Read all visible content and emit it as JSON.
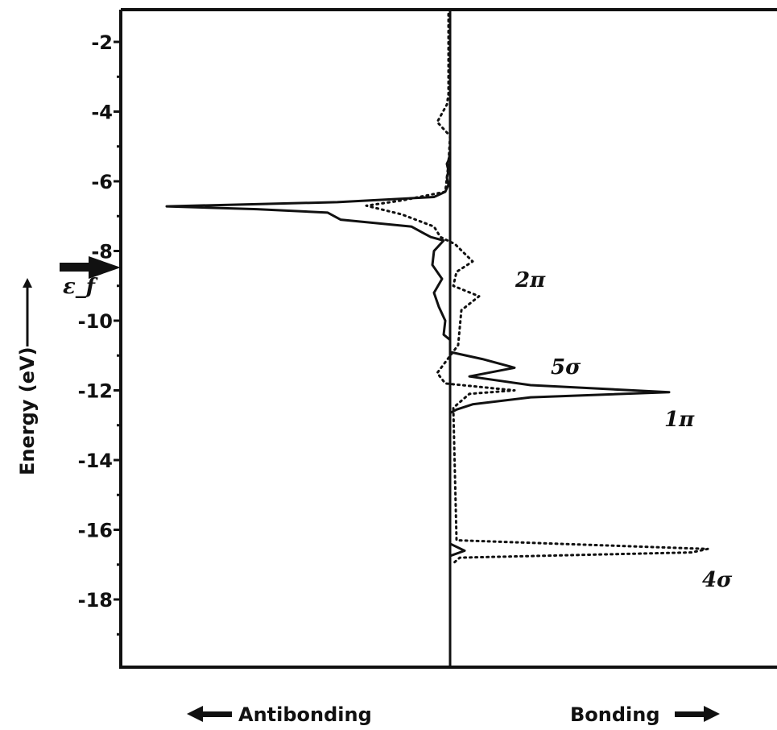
{
  "chart_data": {
    "type": "line",
    "ylabel": "Energy (eV)",
    "ylim": [
      -20,
      -1.3
    ],
    "yticks": [
      -2,
      -4,
      -6,
      -8,
      -10,
      -12,
      -14,
      -16,
      -18
    ],
    "xlabel_left": "Antibonding",
    "xlabel_right": "Bonding",
    "fermi_label": "ε_f",
    "fermi_energy": -8.4,
    "grid": false,
    "orbital_labels": [
      {
        "text": "2π",
        "energy": -8.8
      },
      {
        "text": "5σ",
        "energy": -11.3
      },
      {
        "text": "1π",
        "energy": -12.8
      },
      {
        "text": "4σ",
        "energy": -17.4
      }
    ],
    "series": [
      {
        "style": "solid",
        "points": [
          [
            0,
            -1.5
          ],
          [
            0,
            -5.2
          ],
          [
            -0.05,
            -5.4
          ],
          [
            -0.1,
            -5.5
          ],
          [
            -0.05,
            -5.7
          ],
          [
            -0.1,
            -5.9
          ],
          [
            -0.05,
            -6.1
          ],
          [
            -0.15,
            -6.3
          ],
          [
            -0.5,
            -6.45
          ],
          [
            -3.5,
            -6.6
          ],
          [
            -8.8,
            -6.72
          ],
          [
            -6,
            -6.8
          ],
          [
            -3.8,
            -6.9
          ],
          [
            -3.4,
            -7.1
          ],
          [
            -1.2,
            -7.3
          ],
          [
            -0.8,
            -7.5
          ],
          [
            -0.6,
            -7.6
          ],
          [
            -0.2,
            -7.7
          ],
          [
            -0.5,
            -8.0
          ],
          [
            -0.55,
            -8.4
          ],
          [
            -0.25,
            -8.8
          ],
          [
            -0.5,
            -9.2
          ],
          [
            -0.35,
            -9.6
          ],
          [
            -0.15,
            -10.0
          ],
          [
            -0.2,
            -10.4
          ],
          [
            0,
            -10.55
          ],
          [
            0,
            -10.9
          ],
          [
            1.0,
            -11.1
          ],
          [
            2.0,
            -11.35
          ],
          [
            0.6,
            -11.6
          ],
          [
            2.5,
            -11.85
          ],
          [
            6.8,
            -12.05
          ],
          [
            2.5,
            -12.2
          ],
          [
            0.7,
            -12.4
          ],
          [
            0.2,
            -12.55
          ],
          [
            0,
            -12.65
          ],
          [
            0,
            -16.4
          ],
          [
            0.45,
            -16.6
          ],
          [
            0,
            -16.75
          ],
          [
            0,
            -19.3
          ]
        ]
      },
      {
        "style": "dotted",
        "points": [
          [
            -0.05,
            -1.2
          ],
          [
            -0.05,
            -3.5
          ],
          [
            -0.1,
            -3.8
          ],
          [
            -0.4,
            -4.3
          ],
          [
            0,
            -4.7
          ],
          [
            -0.05,
            -5.5
          ],
          [
            -0.15,
            -6.3
          ],
          [
            -1.5,
            -6.55
          ],
          [
            -2.6,
            -6.7
          ],
          [
            -1.5,
            -6.95
          ],
          [
            -0.5,
            -7.3
          ],
          [
            -0.3,
            -7.6
          ],
          [
            0.15,
            -7.8
          ],
          [
            0.7,
            -8.3
          ],
          [
            0.2,
            -8.6
          ],
          [
            0.1,
            -9.0
          ],
          [
            0.9,
            -9.3
          ],
          [
            0.35,
            -9.7
          ],
          [
            0.3,
            -10.2
          ],
          [
            0.25,
            -10.7
          ],
          [
            -0.4,
            -11.5
          ],
          [
            -0.15,
            -11.8
          ],
          [
            2.0,
            -12.0
          ],
          [
            0.6,
            -12.1
          ],
          [
            0.1,
            -12.5
          ],
          [
            0.2,
            -16.3
          ],
          [
            8.0,
            -16.55
          ],
          [
            7.5,
            -16.65
          ],
          [
            0.3,
            -16.8
          ],
          [
            0.05,
            -17.0
          ]
        ]
      }
    ]
  }
}
